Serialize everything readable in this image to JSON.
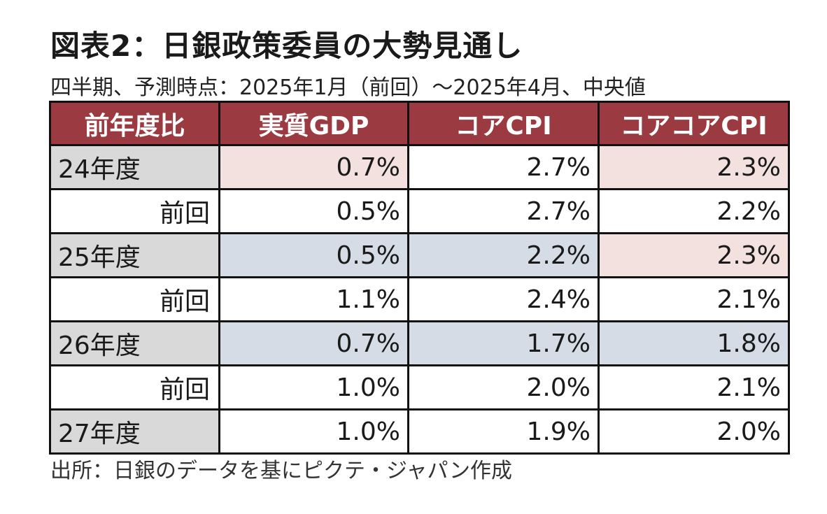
{
  "title": "図表2：日銀政策委員の大勢見通し",
  "subtitle": "四半期、予測時点：2025年1月（前回）～2025年4月、中央値",
  "source": "出所：日銀のデータを基にピクテ・ジャパン作成",
  "colors": {
    "header_bg": "#9b3a40",
    "header_text": "#ffffff",
    "label_gray": "#d9d9d9",
    "highlight_up": "#f2e1de",
    "highlight_down": "#d6dce6",
    "plain": "#ffffff"
  },
  "chart_data": {
    "type": "table",
    "columns": [
      "前年度比",
      "実質GDP",
      "コアCPI",
      "コアコアCPI"
    ],
    "rows": [
      {
        "label": "24年度",
        "kind": "current",
        "values": [
          "0.7%",
          "2.7%",
          "2.3%"
        ],
        "shades": [
          "up",
          "none",
          "up"
        ]
      },
      {
        "label": "前回",
        "kind": "previous",
        "values": [
          "0.5%",
          "2.7%",
          "2.2%"
        ],
        "shades": [
          "none",
          "none",
          "none"
        ]
      },
      {
        "label": "25年度",
        "kind": "current",
        "values": [
          "0.5%",
          "2.2%",
          "2.3%"
        ],
        "shades": [
          "down",
          "down",
          "up"
        ]
      },
      {
        "label": "前回",
        "kind": "previous",
        "values": [
          "1.1%",
          "2.4%",
          "2.1%"
        ],
        "shades": [
          "none",
          "none",
          "none"
        ]
      },
      {
        "label": "26年度",
        "kind": "current",
        "values": [
          "0.7%",
          "1.7%",
          "1.8%"
        ],
        "shades": [
          "down",
          "down",
          "down"
        ]
      },
      {
        "label": "前回",
        "kind": "previous",
        "values": [
          "1.0%",
          "2.0%",
          "2.1%"
        ],
        "shades": [
          "none",
          "none",
          "none"
        ]
      },
      {
        "label": "27年度",
        "kind": "current",
        "values": [
          "1.0%",
          "1.9%",
          "2.0%"
        ],
        "shades": [
          "none",
          "none",
          "none"
        ]
      }
    ]
  }
}
